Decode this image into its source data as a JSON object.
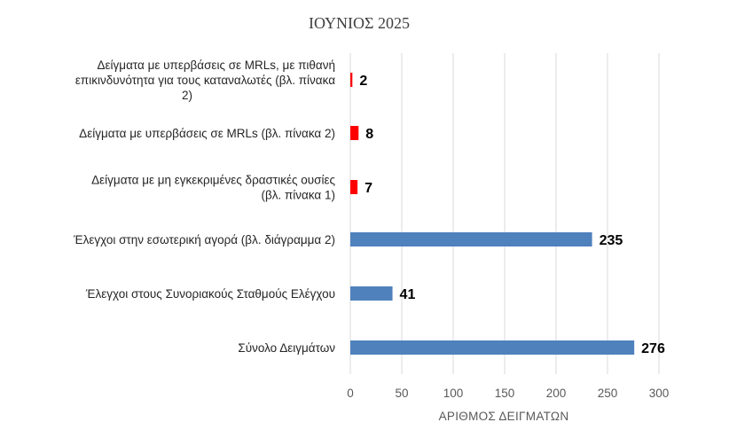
{
  "chart_data": {
    "type": "bar",
    "orientation": "horizontal",
    "title": "ΙΟΥΝΙΟΣ 2025",
    "xlabel": "ΑΡΙΘΜΟΣ ΔΕΙΓΜΑΤΩΝ",
    "ylabel": "",
    "xlim": [
      0,
      300
    ],
    "xticks": [
      0,
      50,
      100,
      150,
      200,
      250,
      300
    ],
    "grid": true,
    "legend": "none",
    "categories": [
      {
        "label": "Δείγματα με υπερβάσεις σε MRLs, με πιθανή επικινδυνότητα για τους καταναλωτές (βλ. πίνακα 2)",
        "lines": [
          "Δείγματα με υπερβάσεις σε MRLs, με πιθανή",
          "επικινδυνότητα για τους καταναλωτές (βλ. πίνακα",
          "2)"
        ],
        "value": 2,
        "value_label": "2",
        "color": "#ff0000"
      },
      {
        "label": "Δείγματα με υπερβάσεις σε MRLs (βλ. πίνακα 2)",
        "lines": [
          "Δείγματα με υπερβάσεις σε MRLs (βλ. πίνακα 2)"
        ],
        "value": 8,
        "value_label": "8",
        "color": "#ff0000"
      },
      {
        "label": "Δείγματα με μη εγκεκριμένες δραστικές ουσίες (βλ. πίνακα 1)",
        "lines": [
          "Δείγματα με μη εγκεκριμένες δραστικές ουσίες",
          "(βλ. πίνακα 1)"
        ],
        "value": 7,
        "value_label": "7",
        "color": "#ff0000"
      },
      {
        "label": "Έλεγχοι στην εσωτερική αγορά (βλ. διάγραμμα 2)",
        "lines": [
          "Έλεγχοι στην εσωτερική αγορά (βλ. διάγραμμα 2)"
        ],
        "value": 235,
        "value_label": "235",
        "color": "#4f81bd"
      },
      {
        "label": "Έλεγχοι στους Συνοριακούς Σταθμούς Ελέγχου",
        "lines": [
          "Έλεγχοι στους Συνοριακούς Σταθμούς Ελέγχου"
        ],
        "value": 41,
        "value_label": "41",
        "color": "#4f81bd"
      },
      {
        "label": "Σύνολο Δειγμάτων",
        "lines": [
          "Σύνολο Δειγμάτων"
        ],
        "value": 276,
        "value_label": "276",
        "color": "#4f81bd"
      }
    ]
  }
}
